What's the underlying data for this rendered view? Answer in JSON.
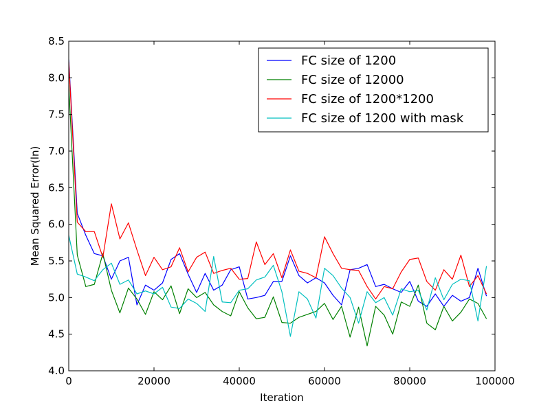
{
  "chart_data": {
    "type": "line",
    "title": "",
    "xlabel": "Iteration",
    "ylabel": "Mean Squared Error(ln)",
    "xlim": [
      0,
      100000
    ],
    "ylim": [
      4.0,
      8.5
    ],
    "xticks": [
      0,
      20000,
      40000,
      60000,
      80000,
      100000
    ],
    "xtick_labels": [
      "0",
      "20000",
      "40000",
      "60000",
      "80000",
      "100000"
    ],
    "yticks": [
      4.0,
      4.5,
      5.0,
      5.5,
      6.0,
      6.5,
      7.0,
      7.5,
      8.0,
      8.5
    ],
    "ytick_labels": [
      "4.0",
      "4.5",
      "5.0",
      "5.5",
      "6.0",
      "6.5",
      "7.0",
      "7.5",
      "8.0",
      "8.5"
    ],
    "grid": false,
    "legend_position": "top-right",
    "x": [
      0,
      2000,
      4000,
      6000,
      8000,
      10000,
      12000,
      14000,
      16000,
      18000,
      20000,
      22000,
      24000,
      26000,
      28000,
      30000,
      32000,
      34000,
      36000,
      38000,
      40000,
      42000,
      44000,
      46000,
      48000,
      50000,
      52000,
      54000,
      56000,
      58000,
      60000,
      62000,
      64000,
      66000,
      68000,
      70000,
      72000,
      74000,
      76000,
      78000,
      80000,
      82000,
      84000,
      86000,
      88000,
      90000,
      92000,
      94000,
      96000,
      98000
    ],
    "series": [
      {
        "name": "FC size of 1200",
        "color": "#0000ff",
        "values": [
          8.25,
          6.15,
          5.85,
          5.6,
          5.57,
          5.25,
          5.5,
          5.55,
          4.9,
          5.17,
          5.1,
          5.2,
          5.52,
          5.6,
          5.32,
          5.07,
          5.33,
          5.1,
          5.17,
          5.38,
          5.42,
          4.98,
          5.0,
          5.03,
          5.22,
          5.22,
          5.57,
          5.3,
          5.2,
          5.27,
          5.2,
          5.03,
          4.9,
          5.38,
          5.4,
          5.45,
          5.15,
          5.18,
          5.12,
          5.07,
          5.22,
          4.95,
          4.88,
          5.05,
          4.88,
          5.03,
          4.95,
          5.0,
          5.4,
          5.02
        ]
      },
      {
        "name": "FC size of 12000",
        "color": "#008000",
        "values": [
          7.9,
          5.58,
          5.15,
          5.18,
          5.6,
          5.1,
          4.79,
          5.13,
          4.98,
          4.77,
          5.08,
          4.97,
          5.16,
          4.78,
          5.12,
          5.0,
          5.07,
          4.9,
          4.81,
          4.75,
          5.08,
          4.86,
          4.71,
          4.73,
          5.01,
          4.66,
          4.65,
          4.73,
          4.77,
          4.81,
          4.92,
          4.7,
          4.88,
          4.46,
          4.87,
          4.34,
          4.88,
          4.76,
          4.5,
          4.94,
          4.88,
          5.17,
          4.65,
          4.56,
          4.88,
          4.68,
          4.8,
          4.98,
          4.92,
          4.71
        ]
      },
      {
        "name": "FC size of 1200*1200",
        "color": "#ff0000",
        "values": [
          8.22,
          6.03,
          5.9,
          5.9,
          5.55,
          6.28,
          5.8,
          6.02,
          5.65,
          5.3,
          5.55,
          5.38,
          5.42,
          5.68,
          5.35,
          5.55,
          5.62,
          5.33,
          5.37,
          5.4,
          5.25,
          5.26,
          5.76,
          5.45,
          5.6,
          5.27,
          5.65,
          5.36,
          5.33,
          5.27,
          5.83,
          5.6,
          5.4,
          5.38,
          5.37,
          5.15,
          4.98,
          5.15,
          5.12,
          5.35,
          5.52,
          5.54,
          5.22,
          5.1,
          5.38,
          5.25,
          5.58,
          5.15,
          5.3,
          5.05
        ]
      },
      {
        "name": "FC size of 1200 with mask",
        "color": "#00bfbf",
        "values": [
          5.85,
          5.32,
          5.28,
          5.23,
          5.38,
          5.47,
          5.18,
          5.24,
          5.05,
          5.09,
          5.05,
          5.14,
          4.87,
          4.85,
          4.98,
          4.92,
          4.81,
          5.56,
          4.94,
          4.93,
          5.1,
          5.12,
          5.24,
          5.28,
          5.44,
          5.08,
          4.47,
          5.08,
          4.98,
          4.72,
          5.4,
          5.3,
          5.13,
          5.0,
          4.65,
          5.08,
          4.93,
          5.0,
          4.76,
          5.12,
          5.08,
          5.1,
          4.83,
          5.27,
          4.97,
          5.18,
          5.25,
          5.23,
          4.68,
          5.43
        ]
      }
    ]
  }
}
